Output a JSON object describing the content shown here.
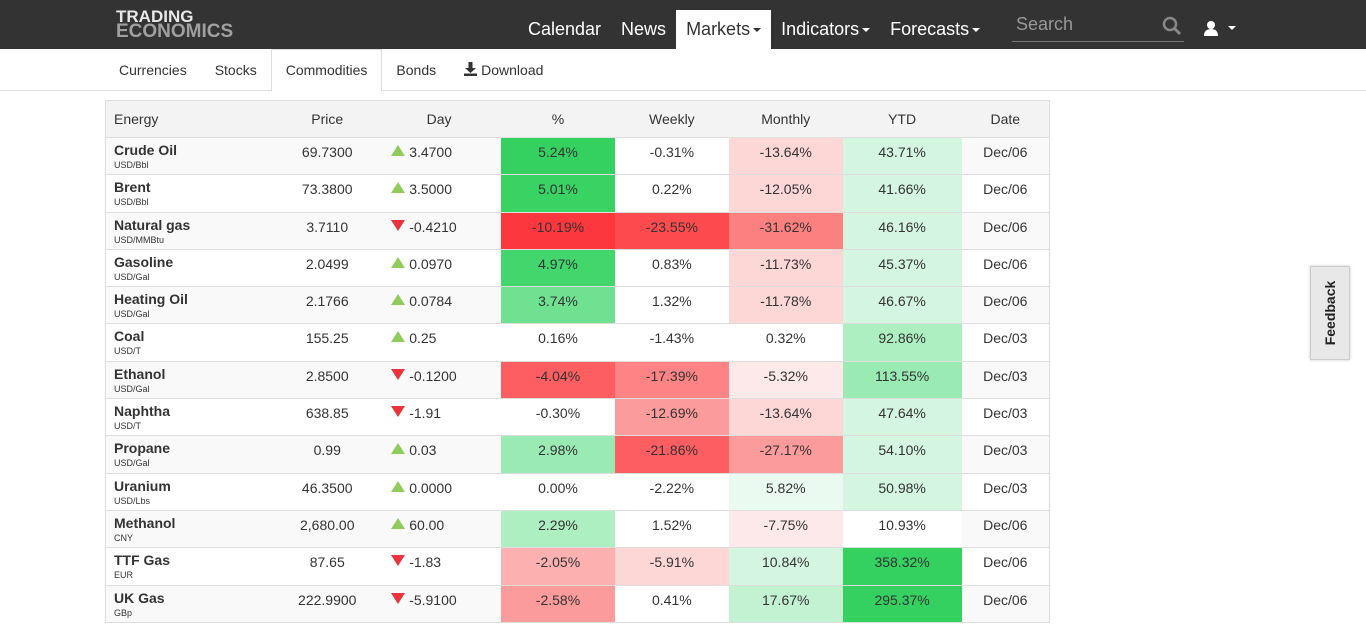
{
  "logo": {
    "line1": "TRADING",
    "line2": "ECONOMICS"
  },
  "nav": [
    {
      "label": "Calendar",
      "dropdown": false,
      "active": false
    },
    {
      "label": "News",
      "dropdown": false,
      "active": false
    },
    {
      "label": "Markets",
      "dropdown": true,
      "active": true
    },
    {
      "label": "Indicators",
      "dropdown": true,
      "active": false
    },
    {
      "label": "Forecasts",
      "dropdown": true,
      "active": false
    }
  ],
  "search": {
    "placeholder": "Search",
    "value": ""
  },
  "subnav": [
    {
      "label": "Currencies",
      "active": false
    },
    {
      "label": "Stocks",
      "active": false
    },
    {
      "label": "Commodities",
      "active": true
    },
    {
      "label": "Bonds",
      "active": false
    },
    {
      "label": "Download",
      "active": false,
      "icon": "download-icon"
    }
  ],
  "table": {
    "headers": [
      "Energy",
      "Price",
      "Day",
      "%",
      "Weekly",
      "Monthly",
      "YTD",
      "Date"
    ],
    "rows": [
      {
        "name": "Crude Oil",
        "unit": "USD/Bbl",
        "price": "69.7300",
        "dir": "up",
        "day": "3.4700",
        "pct": "5.24%",
        "weekly": "-0.31%",
        "monthly": "-13.64%",
        "ytd": "43.71%",
        "date": "Dec/06",
        "colors": {
          "pct": "#34d160",
          "weekly": "",
          "monthly": "#fdd6d6",
          "ytd": "#d4f5df"
        }
      },
      {
        "name": "Brent",
        "unit": "USD/Bbl",
        "price": "73.3800",
        "dir": "up",
        "day": "3.5000",
        "pct": "5.01%",
        "weekly": "0.22%",
        "monthly": "-12.05%",
        "ytd": "41.66%",
        "date": "Dec/06",
        "colors": {
          "pct": "#38d363",
          "weekly": "",
          "monthly": "#fdd6d6",
          "ytd": "#d4f5df"
        }
      },
      {
        "name": "Natural gas",
        "unit": "USD/MMBtu",
        "price": "3.7110",
        "dir": "down",
        "day": "-0.4210",
        "pct": "-10.19%",
        "weekly": "-23.55%",
        "monthly": "-31.62%",
        "ytd": "46.16%",
        "date": "Dec/06",
        "colors": {
          "pct": "#fc373d",
          "weekly": "#fd4a4f",
          "monthly": "#fd8080",
          "ytd": "#d4f5df"
        }
      },
      {
        "name": "Gasoline",
        "unit": "USD/Gal",
        "price": "2.0499",
        "dir": "up",
        "day": "0.0970",
        "pct": "4.97%",
        "weekly": "0.83%",
        "monthly": "-11.73%",
        "ytd": "45.37%",
        "date": "Dec/06",
        "colors": {
          "pct": "#43d66c",
          "weekly": "",
          "monthly": "#fdd6d6",
          "ytd": "#d4f5df"
        }
      },
      {
        "name": "Heating Oil",
        "unit": "USD/Gal",
        "price": "2.1766",
        "dir": "up",
        "day": "0.0784",
        "pct": "3.74%",
        "weekly": "1.32%",
        "monthly": "-11.78%",
        "ytd": "46.67%",
        "date": "Dec/06",
        "colors": {
          "pct": "#6fe190",
          "weekly": "",
          "monthly": "#fdd6d6",
          "ytd": "#d4f5df"
        }
      },
      {
        "name": "Coal",
        "unit": "USD/T",
        "price": "155.25",
        "dir": "up",
        "day": "0.25",
        "pct": "0.16%",
        "weekly": "-1.43%",
        "monthly": "0.32%",
        "ytd": "92.86%",
        "date": "Dec/03",
        "colors": {
          "pct": "",
          "weekly": "",
          "monthly": "",
          "ytd": "#aeefc2"
        }
      },
      {
        "name": "Ethanol",
        "unit": "USD/Gal",
        "price": "2.8500",
        "dir": "down",
        "day": "-0.1200",
        "pct": "-4.04%",
        "weekly": "-17.39%",
        "monthly": "-5.32%",
        "ytd": "113.55%",
        "date": "Dec/03",
        "colors": {
          "pct": "#fd5e61",
          "weekly": "#fd8384",
          "monthly": "#fde9e9",
          "ytd": "#9aeab3"
        }
      },
      {
        "name": "Naphtha",
        "unit": "USD/T",
        "price": "638.85",
        "dir": "down",
        "day": "-1.91",
        "pct": "-0.30%",
        "weekly": "-12.69%",
        "monthly": "-13.64%",
        "ytd": "47.64%",
        "date": "Dec/03",
        "colors": {
          "pct": "",
          "weekly": "#fc9b9b",
          "monthly": "#fdd6d6",
          "ytd": "#d4f5df"
        }
      },
      {
        "name": "Propane",
        "unit": "USD/Gal",
        "price": "0.99",
        "dir": "up",
        "day": "0.03",
        "pct": "2.98%",
        "weekly": "-21.86%",
        "monthly": "-27.17%",
        "ytd": "54.10%",
        "date": "Dec/03",
        "colors": {
          "pct": "#9aeab3",
          "weekly": "#fd5e61",
          "monthly": "#fc9b9b",
          "ytd": "#d4f5df"
        }
      },
      {
        "name": "Uranium",
        "unit": "USD/Lbs",
        "price": "46.3500",
        "dir": "up",
        "day": "0.0000",
        "pct": "0.00%",
        "weekly": "-2.22%",
        "monthly": "5.82%",
        "ytd": "50.98%",
        "date": "Dec/03",
        "colors": {
          "pct": "",
          "weekly": "",
          "monthly": "#eafaf0",
          "ytd": "#d4f5df"
        }
      },
      {
        "name": "Methanol",
        "unit": "CNY",
        "price": "2,680.00",
        "dir": "up",
        "day": "60.00",
        "pct": "2.29%",
        "weekly": "1.52%",
        "monthly": "-7.75%",
        "ytd": "10.93%",
        "date": "Dec/06",
        "colors": {
          "pct": "#aeefc2",
          "weekly": "",
          "monthly": "#fde9e9",
          "ytd": ""
        }
      },
      {
        "name": "TTF Gas",
        "unit": "EUR",
        "price": "87.65",
        "dir": "down",
        "day": "-1.83",
        "pct": "-2.05%",
        "weekly": "-5.91%",
        "monthly": "10.84%",
        "ytd": "358.32%",
        "date": "Dec/06",
        "colors": {
          "pct": "#fcb0b0",
          "weekly": "#fdd6d6",
          "monthly": "#d4f5df",
          "ytd": "#34d160"
        }
      },
      {
        "name": "UK Gas",
        "unit": "GBp",
        "price": "222.9900",
        "dir": "down",
        "day": "-5.9100",
        "pct": "-2.58%",
        "weekly": "0.41%",
        "monthly": "17.67%",
        "ytd": "295.37%",
        "date": "Dec/06",
        "colors": {
          "pct": "#fc9b9b",
          "weekly": "",
          "monthly": "#c2f2d1",
          "ytd": "#34d160"
        }
      }
    ]
  },
  "feedback": {
    "label": "Feedback"
  }
}
